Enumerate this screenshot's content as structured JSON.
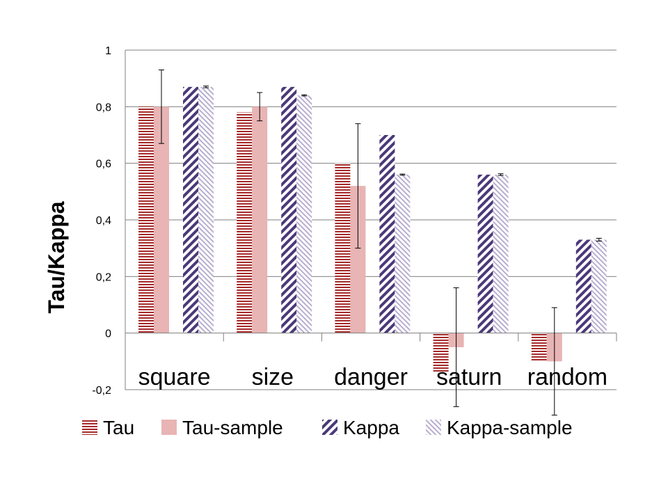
{
  "chart_data": {
    "type": "bar",
    "ylabel": "Tau/Kappa",
    "ylim": [
      -0.2,
      1.0
    ],
    "yticks": [
      -0.2,
      0,
      0.2,
      0.4,
      0.6,
      0.8,
      1.0
    ],
    "ytick_labels": [
      "-0,2",
      "0",
      "0,2",
      "0,4",
      "0,6",
      "0,8",
      "1"
    ],
    "grid": true,
    "legend_position": "bottom",
    "categories": [
      "square",
      "size",
      "danger",
      "saturn",
      "random"
    ],
    "series": [
      {
        "name": "Tau",
        "values": [
          0.8,
          0.78,
          0.6,
          -0.14,
          -0.1
        ]
      },
      {
        "name": "Tau-sample",
        "values": [
          0.8,
          0.8,
          0.52,
          -0.05,
          -0.1
        ],
        "error": [
          0.13,
          0.05,
          0.22,
          0.21,
          0.19
        ]
      },
      {
        "name": "Kappa",
        "values": [
          0.87,
          0.87,
          0.7,
          0.56,
          0.33
        ]
      },
      {
        "name": "Kappa-sample",
        "values": [
          0.87,
          0.84,
          0.56,
          0.56,
          0.33
        ],
        "error": [
          0.003,
          0.002,
          0.002,
          0.003,
          0.005
        ]
      }
    ],
    "colors": {
      "Tau": "#a52a2a",
      "Tau-sample": "#e8b4b4",
      "Kappa": "#4b3878",
      "Kappa-sample": "#b8aed0"
    }
  }
}
